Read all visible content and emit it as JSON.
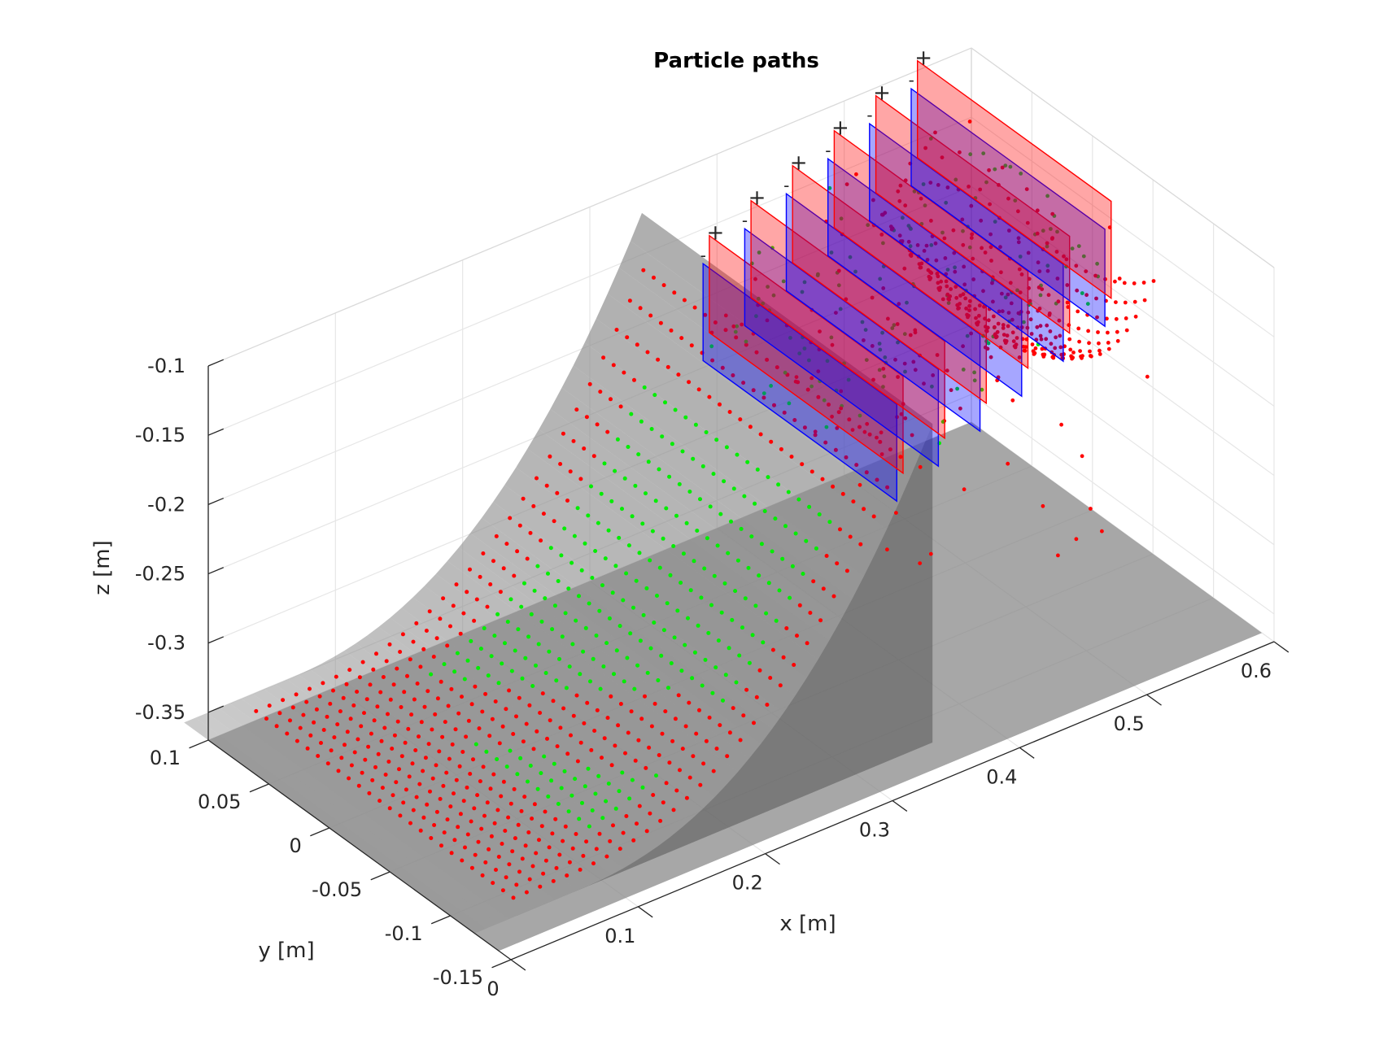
{
  "chart_data": {
    "type": "scatter",
    "title": "Particle paths",
    "xlabel": "x [m]",
    "ylabel": "y [m]",
    "zlabel": "z [m]",
    "xlim": [
      0,
      0.6
    ],
    "ylim": [
      -0.15,
      0.1
    ],
    "zlim": [
      -0.37,
      -0.1
    ],
    "x_ticks": [
      "0",
      "0.1",
      "0.2",
      "0.3",
      "0.4",
      "0.5",
      "0.6"
    ],
    "y_ticks": [
      "-0.15",
      "-0.1",
      "-0.05",
      "0",
      "0.05",
      "0.1"
    ],
    "z_ticks": [
      "-0.35",
      "-0.3",
      "-0.25",
      "-0.2",
      "-0.15",
      "-0.1"
    ],
    "grid": true,
    "view": "3d",
    "electrodes": {
      "count": 12,
      "x_range": [
        0.37,
        0.55
      ],
      "z_range": [
        -0.19,
        -0.12
      ],
      "y_range": [
        -0.08,
        0.08
      ],
      "polarity_labels": [
        "-",
        "+",
        "-",
        "+",
        "-",
        "+",
        "-",
        "+",
        "-",
        "+",
        "-",
        "+"
      ]
    },
    "colors": {
      "red_particles": "#ff0000",
      "green_particles": "#00ee00",
      "surface": "#808080",
      "negative_electrode": "#0000ff",
      "positive_electrode": "#ff0000",
      "axes": "#262626",
      "grid": "#e6e6e6"
    }
  }
}
